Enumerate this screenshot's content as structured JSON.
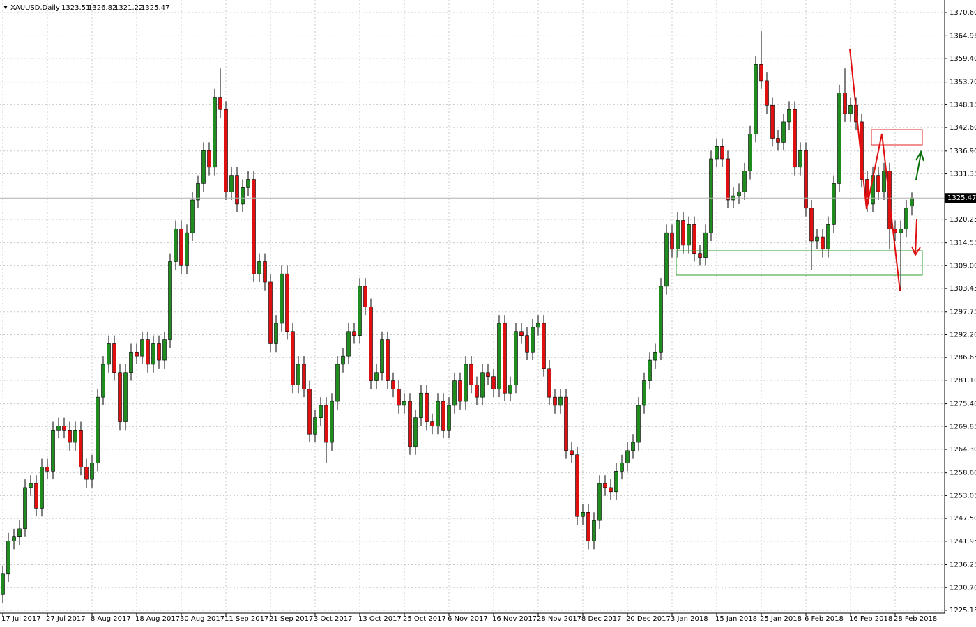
{
  "chart_data": {
    "type": "candlestick",
    "symbol": "XAUUSD,Daily",
    "up_color": "#1e8c1e",
    "down_color": "#e01010",
    "grid": true,
    "ylim": [
      1225.15,
      1370.6
    ],
    "yticks": [
      {
        "value": 1370.6,
        "label": "1370.60"
      },
      1364.95,
      {
        "value": 1359.4,
        "label": "1359.40"
      },
      {
        "value": 1353.7,
        "label": "1353.70"
      },
      1348.15,
      {
        "value": 1342.6,
        "label": "1342.60"
      },
      {
        "value": 1336.9,
        "label": "1336.90"
      },
      1331.35,
      1320.25,
      1314.55,
      {
        "value": 1309.0,
        "label": "1309.00"
      },
      1303.45,
      1297.75,
      {
        "value": 1292.2,
        "label": "1292.20"
      },
      1286.65,
      {
        "value": 1281.1,
        "label": "1281.10"
      },
      {
        "value": 1275.4,
        "label": "1275.40"
      },
      1269.85,
      {
        "value": 1264.3,
        "label": "1264.30"
      },
      {
        "value": 1258.6,
        "label": "1258.60"
      },
      1253.05,
      {
        "value": 1247.5,
        "label": "1247.50"
      },
      1241.95,
      1236.25,
      {
        "value": 1230.7,
        "label": "1230.70"
      },
      1225.15
    ],
    "categories": [
      "17 Jul 2017",
      null,
      null,
      null,
      null,
      null,
      null,
      null,
      "27 Jul 2017",
      null,
      null,
      null,
      null,
      null,
      null,
      null,
      "8 Aug 2017",
      null,
      null,
      null,
      null,
      null,
      null,
      null,
      "18 Aug 2017",
      null,
      null,
      null,
      null,
      null,
      null,
      null,
      "30 Aug 2017",
      null,
      null,
      null,
      null,
      null,
      null,
      null,
      "11 Sep 2017",
      null,
      null,
      null,
      null,
      null,
      null,
      null,
      "21 Sep 2017",
      null,
      null,
      null,
      null,
      null,
      null,
      null,
      "3 Oct 2017",
      null,
      null,
      null,
      null,
      null,
      null,
      null,
      "13 Oct 2017",
      null,
      null,
      null,
      null,
      null,
      null,
      null,
      "25 Oct 2017",
      null,
      null,
      null,
      null,
      null,
      null,
      null,
      "6 Nov 2017",
      null,
      null,
      null,
      null,
      null,
      null,
      null,
      "16 Nov 2017",
      null,
      null,
      null,
      null,
      null,
      null,
      null,
      "28 Nov 2017",
      null,
      null,
      null,
      null,
      null,
      null,
      null,
      "8 Dec 2017",
      null,
      null,
      null,
      null,
      null,
      null,
      null,
      "20 Dec 2017",
      null,
      null,
      null,
      null,
      null,
      null,
      null,
      "3 Jan 2018",
      null,
      null,
      null,
      null,
      null,
      null,
      null,
      "15 Jan 2018",
      null,
      null,
      null,
      null,
      null,
      null,
      null,
      "25 Jan 2018",
      null,
      null,
      null,
      null,
      null,
      null,
      null,
      "6 Feb 2018",
      null,
      null,
      null,
      null,
      null,
      null,
      null,
      "16 Feb 2018",
      null,
      null,
      null,
      null,
      null,
      null,
      null,
      "28 Feb 2018",
      null,
      null,
      null
    ],
    "candles": [
      [
        1229,
        1236,
        1227,
        1234
      ],
      [
        1234,
        1244,
        1232,
        1242
      ],
      [
        1242,
        1245,
        1240,
        1243
      ],
      [
        1243,
        1247,
        1241,
        1245
      ],
      [
        1245,
        1257,
        1243,
        1255
      ],
      [
        1255,
        1258,
        1253,
        1256
      ],
      [
        1256,
        1258,
        1248,
        1250
      ],
      [
        1250,
        1262,
        1248,
        1260
      ],
      [
        1260,
        1262,
        1257,
        1259
      ],
      [
        1259,
        1271,
        1257,
        1269
      ],
      [
        1269,
        1272,
        1267,
        1270
      ],
      [
        1270,
        1272,
        1267,
        1269
      ],
      [
        1269,
        1271,
        1264,
        1266
      ],
      [
        1266,
        1271,
        1264,
        1269
      ],
      [
        1269,
        1271,
        1258,
        1260
      ],
      [
        1260,
        1262,
        1255,
        1257
      ],
      [
        1257,
        1263,
        1255,
        1261
      ],
      [
        1261,
        1279,
        1259,
        1277
      ],
      [
        1277,
        1287,
        1275,
        1285
      ],
      [
        1285,
        1292,
        1283,
        1290
      ],
      [
        1290,
        1292,
        1281,
        1283
      ],
      [
        1283,
        1285,
        1269,
        1271
      ],
      [
        1271,
        1285,
        1269,
        1283
      ],
      [
        1283,
        1290,
        1281,
        1288
      ],
      [
        1288,
        1290,
        1285,
        1287
      ],
      [
        1287,
        1293,
        1285,
        1291
      ],
      [
        1291,
        1293,
        1283,
        1285
      ],
      [
        1285,
        1292,
        1283,
        1290
      ],
      [
        1290,
        1292,
        1284,
        1286
      ],
      [
        1286,
        1293,
        1284,
        1291
      ],
      [
        1291,
        1312,
        1289,
        1310
      ],
      [
        1310,
        1320,
        1308,
        1318
      ],
      [
        1318,
        1320,
        1307,
        1309
      ],
      [
        1309,
        1319,
        1307,
        1317
      ],
      [
        1317,
        1327,
        1315,
        1325
      ],
      [
        1325,
        1331,
        1323,
        1329
      ],
      [
        1329,
        1339,
        1327,
        1337
      ],
      [
        1337,
        1339,
        1331,
        1333
      ],
      [
        1333,
        1352,
        1331,
        1350
      ],
      [
        1350,
        1357,
        1345,
        1347
      ],
      [
        1347,
        1349,
        1325,
        1327
      ],
      [
        1327,
        1333,
        1325,
        1331
      ],
      [
        1331,
        1333,
        1322,
        1324
      ],
      [
        1324,
        1330,
        1322,
        1328
      ],
      [
        1328,
        1332,
        1326,
        1330
      ],
      [
        1330,
        1332,
        1305,
        1307
      ],
      [
        1307,
        1312,
        1305,
        1310
      ],
      [
        1310,
        1312,
        1303,
        1305
      ],
      [
        1305,
        1307,
        1288,
        1290
      ],
      [
        1290,
        1297,
        1288,
        1295
      ],
      [
        1295,
        1309,
        1293,
        1307
      ],
      [
        1307,
        1309,
        1291,
        1293
      ],
      [
        1293,
        1295,
        1278,
        1280
      ],
      [
        1280,
        1287,
        1278,
        1285
      ],
      [
        1285,
        1287,
        1277,
        1279
      ],
      [
        1279,
        1281,
        1266,
        1268
      ],
      [
        1268,
        1274,
        1266,
        1272
      ],
      [
        1272,
        1277,
        1270,
        1275
      ],
      [
        1275,
        1277,
        1261,
        1266
      ],
      [
        1266,
        1278,
        1264,
        1276
      ],
      [
        1276,
        1287,
        1274,
        1285
      ],
      [
        1285,
        1289,
        1283,
        1287
      ],
      [
        1287,
        1295,
        1285,
        1293
      ],
      [
        1293,
        1295,
        1290,
        1292
      ],
      [
        1292,
        1306,
        1290,
        1304
      ],
      [
        1304,
        1306,
        1297,
        1299
      ],
      [
        1299,
        1301,
        1279,
        1281
      ],
      [
        1281,
        1285,
        1279,
        1283
      ],
      [
        1283,
        1293,
        1281,
        1291
      ],
      [
        1291,
        1293,
        1279,
        1281
      ],
      [
        1281,
        1283,
        1277,
        1279
      ],
      [
        1279,
        1281,
        1273,
        1275
      ],
      [
        1275,
        1278,
        1273,
        1276
      ],
      [
        1276,
        1278,
        1263,
        1265
      ],
      [
        1265,
        1274,
        1263,
        1272
      ],
      [
        1272,
        1280,
        1270,
        1278
      ],
      [
        1278,
        1280,
        1269,
        1271
      ],
      [
        1271,
        1273,
        1268,
        1270
      ],
      [
        1270,
        1278,
        1268,
        1276
      ],
      [
        1276,
        1278,
        1267,
        1269
      ],
      [
        1269,
        1277,
        1267,
        1275
      ],
      [
        1275,
        1283,
        1273,
        1281
      ],
      [
        1281,
        1283,
        1274,
        1276
      ],
      [
        1276,
        1287,
        1274,
        1285
      ],
      [
        1285,
        1287,
        1278,
        1280
      ],
      [
        1280,
        1282,
        1275,
        1277
      ],
      [
        1277,
        1285,
        1275,
        1283
      ],
      [
        1283,
        1285,
        1280,
        1282
      ],
      [
        1282,
        1284,
        1277,
        1279
      ],
      [
        1279,
        1297,
        1277,
        1295
      ],
      [
        1295,
        1297,
        1276,
        1278
      ],
      [
        1278,
        1282,
        1276,
        1280
      ],
      [
        1280,
        1295,
        1278,
        1293
      ],
      [
        1293,
        1295,
        1290,
        1292
      ],
      [
        1292,
        1294,
        1286,
        1288
      ],
      [
        1288,
        1296,
        1286,
        1294
      ],
      [
        1294,
        1297,
        1292,
        1295
      ],
      [
        1295,
        1297,
        1282,
        1284
      ],
      [
        1284,
        1286,
        1275,
        1277
      ],
      [
        1277,
        1279,
        1273,
        1275
      ],
      [
        1275,
        1279,
        1273,
        1277
      ],
      [
        1277,
        1279,
        1262,
        1264
      ],
      [
        1264,
        1266,
        1261,
        1263
      ],
      [
        1263,
        1265,
        1246,
        1248
      ],
      [
        1248,
        1251,
        1246,
        1249
      ],
      [
        1249,
        1251,
        1240,
        1242
      ],
      [
        1242,
        1249,
        1240,
        1247
      ],
      [
        1247,
        1258,
        1245,
        1256
      ],
      [
        1256,
        1258,
        1253,
        1255
      ],
      [
        1255,
        1257,
        1252,
        1254
      ],
      [
        1254,
        1261,
        1252,
        1259
      ],
      [
        1259,
        1263,
        1257,
        1261
      ],
      [
        1261,
        1266,
        1259,
        1264
      ],
      [
        1264,
        1268,
        1262,
        1266
      ],
      [
        1266,
        1277,
        1264,
        1275
      ],
      [
        1275,
        1283,
        1273,
        1281
      ],
      [
        1281,
        1288,
        1279,
        1286
      ],
      [
        1286,
        1290,
        1284,
        1288
      ],
      [
        1288,
        1306,
        1286,
        1304
      ],
      [
        1304,
        1319,
        1302,
        1317
      ],
      [
        1317,
        1319,
        1311,
        1313
      ],
      [
        1313,
        1322,
        1311,
        1320
      ],
      [
        1320,
        1322,
        1312,
        1314
      ],
      [
        1314,
        1321,
        1312,
        1319
      ],
      [
        1319,
        1321,
        1310,
        1312
      ],
      [
        1312,
        1314,
        1309,
        1311
      ],
      [
        1311,
        1319,
        1309,
        1317
      ],
      [
        1317,
        1337,
        1315,
        1335
      ],
      [
        1335,
        1340,
        1333,
        1338
      ],
      [
        1338,
        1340,
        1333,
        1335
      ],
      [
        1335,
        1337,
        1323,
        1325
      ],
      [
        1325,
        1328,
        1323,
        1326
      ],
      [
        1326,
        1329,
        1324,
        1327
      ],
      [
        1327,
        1334,
        1325,
        1332
      ],
      [
        1332,
        1343,
        1330,
        1341
      ],
      [
        1341,
        1360,
        1339,
        1358
      ],
      [
        1358,
        1366,
        1352,
        1354
      ],
      [
        1354,
        1356,
        1346,
        1348
      ],
      [
        1348,
        1350,
        1338,
        1340
      ],
      [
        1340,
        1342,
        1337,
        1339
      ],
      [
        1339,
        1346,
        1337,
        1344
      ],
      [
        1344,
        1349,
        1342,
        1347
      ],
      [
        1347,
        1349,
        1331,
        1333
      ],
      [
        1333,
        1339,
        1331,
        1337
      ],
      [
        1337,
        1339,
        1321,
        1323
      ],
      [
        1323,
        1325,
        1308,
        1315
      ],
      [
        1315,
        1318,
        1313,
        1316
      ],
      [
        1316,
        1318,
        1311,
        1313
      ],
      [
        1313,
        1321,
        1311,
        1319
      ],
      [
        1319,
        1331,
        1317,
        1329
      ],
      [
        1329,
        1353,
        1327,
        1351
      ],
      [
        1351,
        1357,
        1344,
        1346
      ],
      [
        1346,
        1350,
        1344,
        1348
      ],
      [
        1348,
        1350,
        1342,
        1344
      ],
      [
        1344,
        1346,
        1328,
        1330
      ],
      [
        1330,
        1332,
        1322,
        1324
      ],
      [
        1324,
        1333,
        1322,
        1331
      ],
      [
        1331,
        1333,
        1325,
        1327
      ],
      [
        1327,
        1334,
        1325,
        1332
      ],
      [
        1332,
        1334,
        1313,
        1318
      ],
      [
        1318,
        1320,
        1315,
        1317
      ],
      [
        1317,
        1320,
        1303,
        1318
      ],
      [
        1318,
        1325,
        1316,
        1323
      ],
      [
        1323.51,
        1326.82,
        1321.22,
        1325.47
      ]
    ]
  }
}
